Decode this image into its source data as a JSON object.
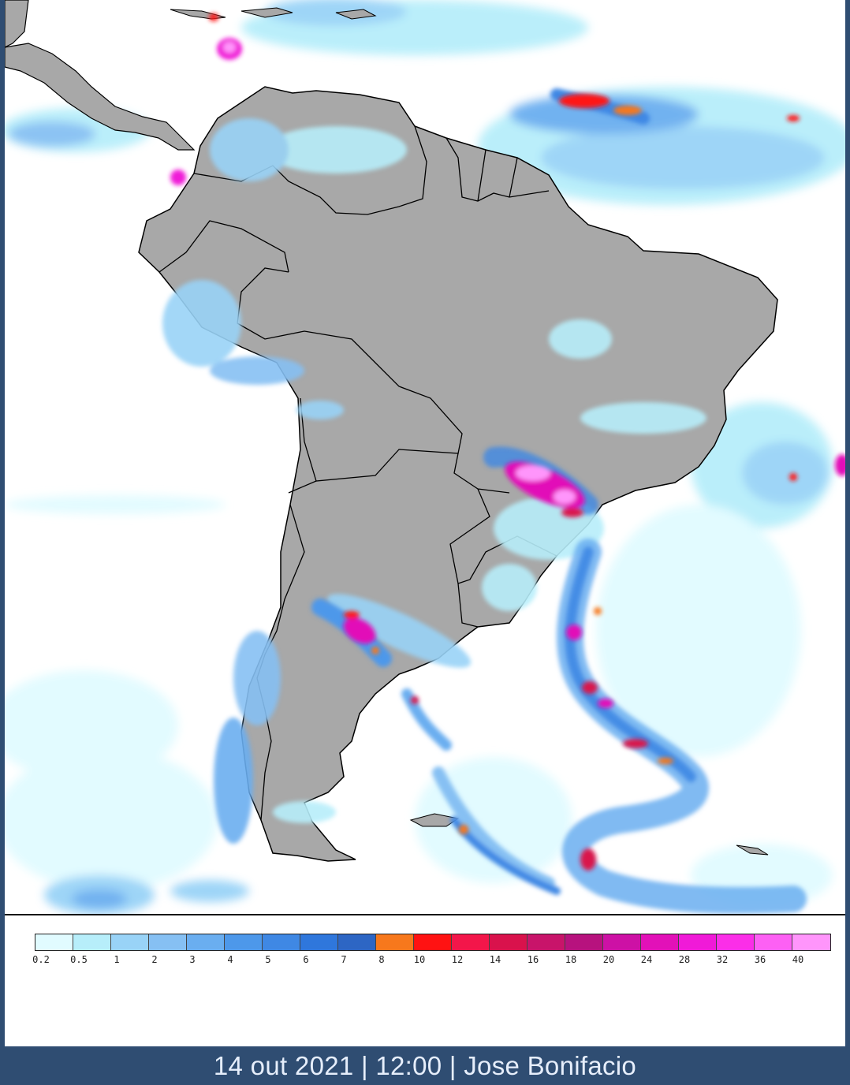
{
  "legend": {
    "labels": [
      "0.2",
      "0.5",
      "1",
      "2",
      "3",
      "4",
      "5",
      "6",
      "7",
      "8",
      "10",
      "12",
      "14",
      "16",
      "18",
      "20",
      "24",
      "28",
      "32",
      "36",
      "40"
    ],
    "colors": [
      "#e1fbff",
      "#b7eefa",
      "#99d3f7",
      "#86c0f3",
      "#6aaef0",
      "#4d98ea",
      "#3f88e4",
      "#2f77dc",
      "#2d66c4",
      "#f7781c",
      "#ff1212",
      "#f3164a",
      "#d9124c",
      "#c8146a",
      "#b7127e",
      "#cd11a5",
      "#e211b8",
      "#f01ad8",
      "#fb2ee8",
      "#fd60f4",
      "#ff95fb"
    ]
  },
  "map": {
    "ocean_color": "#ffffff",
    "land_color": "#a8a8a8",
    "border_color": "#000000"
  },
  "caption": {
    "text": "14 out 2021 | 12:00 | Jose Bonifacio"
  }
}
